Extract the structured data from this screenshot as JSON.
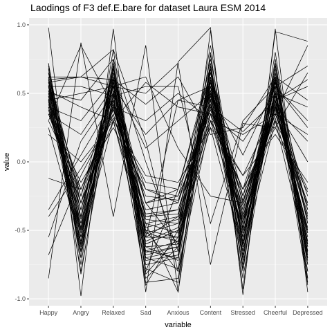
{
  "chart_data": {
    "type": "line",
    "title": "Laodings of F3 def.E.bare for dataset Laura ESM 2014",
    "xlabel": "variable",
    "ylabel": "value",
    "categories": [
      "Happy",
      "Angry",
      "Relaxed",
      "Sad",
      "Anxious",
      "Content",
      "Stressed",
      "Cheerful",
      "Depressed"
    ],
    "ylim": [
      -1.05,
      1.05
    ],
    "yticks": [
      -1.0,
      -0.5,
      0.0,
      0.5,
      1.0
    ],
    "ytick_labels": [
      "-1.0",
      "-0.5",
      "0.0",
      "0.5",
      "1.0"
    ],
    "grid": true,
    "legend": "none",
    "series": [
      {
        "values": [
          0.98,
          -0.98,
          0.97,
          -0.95,
          0.73,
          0.98,
          -0.97,
          0.97,
          -0.95
        ]
      },
      {
        "values": [
          -0.85,
          0.87,
          -0.4,
          0.85,
          -0.95,
          0.96,
          -0.93,
          0.95,
          0.88
        ]
      },
      {
        "values": [
          0.72,
          -0.62,
          0.82,
          -0.82,
          -0.55,
          0.78,
          -0.62,
          0.8,
          -0.75
        ]
      },
      {
        "values": [
          0.62,
          -0.55,
          0.65,
          -0.6,
          -0.5,
          0.55,
          -0.55,
          0.58,
          -0.65
        ]
      },
      {
        "values": [
          0.55,
          -0.45,
          0.6,
          -0.68,
          -0.62,
          0.62,
          -0.48,
          0.5,
          -0.58
        ]
      },
      {
        "values": [
          0.4,
          -0.35,
          0.45,
          -0.52,
          -0.45,
          0.48,
          -0.4,
          0.45,
          -0.5
        ]
      },
      {
        "values": [
          0.68,
          -0.7,
          0.72,
          -0.75,
          -0.7,
          0.7,
          -0.72,
          0.65,
          -0.8
        ]
      },
      {
        "values": [
          0.5,
          -0.3,
          0.55,
          -0.4,
          -0.38,
          0.52,
          -0.35,
          0.4,
          -0.42
        ]
      },
      {
        "values": [
          0.3,
          -0.2,
          0.38,
          -0.35,
          -0.3,
          0.42,
          -0.28,
          0.35,
          -0.3
        ]
      },
      {
        "values": [
          0.6,
          -0.8,
          0.5,
          -0.88,
          -0.85,
          0.6,
          -0.85,
          0.55,
          -0.9
        ]
      },
      {
        "values": [
          0.45,
          -0.5,
          0.4,
          -0.45,
          -0.52,
          0.35,
          -0.55,
          0.42,
          -0.6
        ]
      },
      {
        "values": [
          0.35,
          -0.15,
          0.25,
          -0.2,
          -0.25,
          0.3,
          -0.2,
          0.25,
          -0.22
        ]
      },
      {
        "values": [
          0.65,
          -0.4,
          0.7,
          -0.55,
          -0.4,
          0.75,
          -0.45,
          0.7,
          -0.45
        ]
      },
      {
        "values": [
          0.25,
          -0.6,
          0.3,
          -0.65,
          -0.58,
          0.25,
          -0.65,
          0.3,
          -0.7
        ]
      },
      {
        "values": [
          0.58,
          -0.25,
          0.62,
          -0.3,
          -0.2,
          0.65,
          -0.25,
          0.6,
          -0.35
        ]
      },
      {
        "values": [
          0.2,
          0.0,
          0.3,
          -0.1,
          -0.15,
          0.25,
          -0.1,
          0.2,
          -0.15
        ]
      },
      {
        "values": [
          0.72,
          -0.75,
          0.68,
          -0.7,
          -0.78,
          0.8,
          -0.78,
          0.75,
          -0.85
        ]
      },
      {
        "values": [
          0.48,
          -0.55,
          0.52,
          -0.62,
          -0.6,
          0.58,
          -0.6,
          0.52,
          -0.62
        ]
      },
      {
        "values": [
          0.38,
          -0.4,
          0.42,
          -0.48,
          -0.42,
          0.4,
          -0.45,
          0.38,
          -0.5
        ]
      },
      {
        "values": [
          0.55,
          -0.65,
          0.58,
          -0.72,
          -0.68,
          0.62,
          -0.7,
          0.6,
          -0.75
        ]
      },
      {
        "values": [
          -0.55,
          0.15,
          0.5,
          -0.3,
          -0.25,
          0.55,
          -0.3,
          0.5,
          -0.35
        ]
      },
      {
        "values": [
          -0.68,
          -0.1,
          0.35,
          -0.45,
          -0.4,
          0.45,
          -0.45,
          0.4,
          -0.4
        ]
      },
      {
        "values": [
          -0.35,
          0.05,
          0.45,
          -0.2,
          -0.3,
          0.5,
          -0.35,
          0.45,
          -0.25
        ]
      },
      {
        "values": [
          -0.12,
          -0.2,
          0.4,
          -0.4,
          -0.35,
          0.4,
          -0.25,
          0.35,
          -0.3
        ]
      },
      {
        "values": [
          -0.4,
          -0.05,
          0.32,
          -0.15,
          -0.2,
          0.35,
          -0.2,
          0.3,
          -0.2
        ]
      },
      {
        "values": [
          0.6,
          0.62,
          0.55,
          0.5,
          0.72,
          -0.75,
          0.28,
          0.25,
          0.65
        ]
      },
      {
        "values": [
          0.55,
          0.55,
          0.48,
          0.55,
          0.55,
          -0.45,
          0.3,
          0.55,
          0.7
        ]
      },
      {
        "values": [
          0.62,
          0.62,
          0.6,
          0.42,
          0.62,
          0.2,
          0.25,
          0.62,
          0.45
        ]
      },
      {
        "values": [
          0.3,
          0.85,
          0.4,
          0.3,
          0.5,
          0.3,
          0.2,
          0.35,
          0.85
        ]
      },
      {
        "values": [
          0.45,
          0.5,
          0.55,
          0.2,
          0.45,
          0.4,
          0.22,
          0.45,
          0.55
        ]
      },
      {
        "values": [
          0.52,
          0.4,
          0.3,
          0.58,
          0.4,
          0.35,
          0.15,
          0.5,
          0.4
        ]
      },
      {
        "values": [
          0.4,
          0.3,
          0.6,
          0.1,
          0.3,
          0.5,
          0.05,
          0.55,
          0.3
        ]
      },
      {
        "values": [
          0.58,
          0.62,
          0.82,
          0.15,
          -0.8,
          0.3,
          -0.1,
          0.4,
          0.15
        ]
      },
      {
        "values": [
          0.5,
          0.45,
          0.75,
          0.0,
          -0.65,
          0.35,
          -0.2,
          0.55,
          0.25
        ]
      },
      {
        "values": [
          0.35,
          0.2,
          0.55,
          0.62,
          0.1,
          -0.25,
          -0.3,
          0.4,
          0.0
        ]
      },
      {
        "values": [
          0.65,
          -0.3,
          0.3,
          -0.55,
          0.45,
          0.55,
          -0.4,
          0.35,
          0.2
        ]
      },
      {
        "values": [
          0.7,
          -0.5,
          0.65,
          -0.45,
          -0.95,
          0.6,
          -0.3,
          0.45,
          0.6
        ]
      },
      {
        "values": [
          0.42,
          -0.35,
          0.55,
          -0.8,
          -0.2,
          0.7,
          -0.6,
          0.6,
          -0.85
        ]
      },
      {
        "values": [
          0.52,
          -0.48,
          0.7,
          -0.9,
          -0.5,
          0.85,
          -0.5,
          0.65,
          -0.7
        ]
      },
      {
        "values": [
          0.48,
          -0.6,
          0.62,
          -0.5,
          -0.8,
          0.45,
          -0.75,
          0.55,
          -0.8
        ]
      },
      {
        "values": [
          0.6,
          -0.55,
          0.45,
          -0.3,
          -0.6,
          0.5,
          -0.55,
          0.48,
          -0.55
        ]
      },
      {
        "values": [
          0.4,
          -0.45,
          0.55,
          -0.65,
          -0.7,
          0.55,
          -0.65,
          0.45,
          -0.65
        ]
      },
      {
        "values": [
          0.55,
          -0.7,
          0.6,
          -0.55,
          -0.55,
          0.65,
          -0.5,
          0.62,
          -0.6
        ]
      },
      {
        "values": [
          0.45,
          -0.25,
          0.48,
          -0.58,
          -0.48,
          0.48,
          -0.52,
          0.4,
          -0.48
        ]
      },
      {
        "values": [
          0.62,
          -0.65,
          0.7,
          -0.62,
          -0.72,
          0.72,
          -0.62,
          0.68,
          -0.72
        ]
      },
      {
        "values": [
          0.5,
          -0.52,
          0.45,
          -0.85,
          -0.62,
          0.58,
          -0.58,
          0.5,
          -0.58
        ]
      },
      {
        "values": [
          0.35,
          -0.3,
          0.35,
          -0.5,
          -0.55,
          0.3,
          -0.48,
          0.32,
          -0.52
        ]
      },
      {
        "values": [
          0.68,
          -0.82,
          0.58,
          -0.78,
          -0.88,
          0.68,
          -0.8,
          0.72,
          -0.88
        ]
      },
      {
        "values": [
          0.58,
          -0.42,
          0.68,
          -0.42,
          -0.45,
          0.62,
          -0.38,
          0.58,
          -0.45
        ]
      },
      {
        "values": [
          0.46,
          -0.58,
          0.52,
          -0.6,
          -0.5,
          0.52,
          -0.45,
          0.48,
          -0.52
        ]
      },
      {
        "values": [
          0.38,
          -0.48,
          0.42,
          -0.38,
          -0.35,
          0.42,
          -0.42,
          0.4,
          -0.38
        ]
      },
      {
        "values": [
          0.65,
          -0.6,
          0.75,
          -0.7,
          -0.65,
          0.68,
          -0.68,
          0.62,
          -0.68
        ]
      },
      {
        "values": [
          0.56,
          -0.35,
          0.58,
          -0.52,
          -0.58,
          0.6,
          -0.55,
          0.58,
          -0.62
        ]
      },
      {
        "values": [
          0.44,
          -0.66,
          0.48,
          -0.66,
          -0.62,
          0.46,
          -0.62,
          0.44,
          -0.66
        ]
      },
      {
        "values": [
          0.52,
          -0.2,
          0.38,
          -0.25,
          -0.28,
          0.38,
          -0.32,
          0.35,
          -0.32
        ]
      }
    ]
  }
}
